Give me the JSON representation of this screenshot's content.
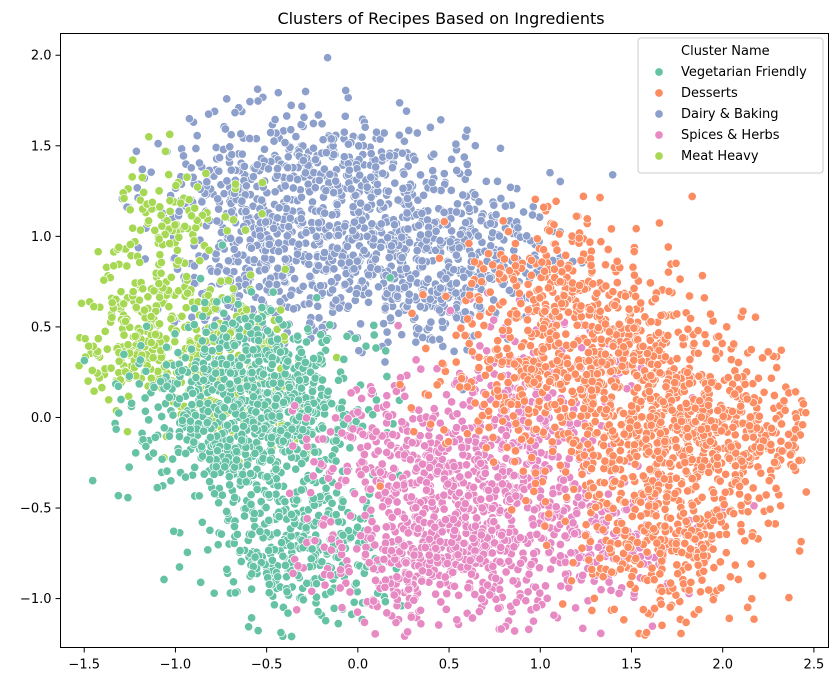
{
  "chart_data": {
    "type": "scatter",
    "title": "Clusters of Recipes Based on Ingredients",
    "xlabel": "",
    "ylabel": "",
    "xlim": [
      -1.63,
      2.58
    ],
    "ylim": [
      -1.27,
      2.12
    ],
    "xticks": [
      -1.5,
      -1.0,
      -0.5,
      0.0,
      0.5,
      1.0,
      1.5,
      2.0,
      2.5
    ],
    "xtick_labels": [
      "−1.5",
      "−1.0",
      "−0.5",
      "0.0",
      "0.5",
      "1.0",
      "1.5",
      "2.0",
      "2.5"
    ],
    "yticks": [
      -1.0,
      -0.5,
      0.0,
      0.5,
      1.0,
      1.5,
      2.0
    ],
    "ytick_labels": [
      "−1.0",
      "−0.5",
      "0.0",
      "0.5",
      "1.0",
      "1.5",
      "2.0"
    ],
    "grid": false,
    "legend_placement": "top-right",
    "legend_title": "Cluster Name",
    "marker_edge_color": "#ffffff",
    "series": [
      {
        "name": "Vegetarian Friendly",
        "color": "#66c2a5",
        "centers": [
          [
            -0.58,
            -0.12
          ],
          [
            -0.42,
            -0.55
          ],
          [
            -0.86,
            0.05
          ],
          [
            -0.28,
            -0.78
          ],
          [
            -0.3,
            0.08
          ],
          [
            -0.65,
            0.32
          ]
        ],
        "spread": [
          0.23,
          0.2
        ],
        "count": 1200,
        "seed": 11
      },
      {
        "name": "Desserts",
        "color": "#fc8d62",
        "centers": [
          [
            1.38,
            0.42
          ],
          [
            1.62,
            0.08
          ],
          [
            1.12,
            0.72
          ],
          [
            1.55,
            -0.42
          ],
          [
            1.85,
            -0.1
          ],
          [
            0.9,
            0.22
          ],
          [
            1.72,
            -0.75
          ],
          [
            2.15,
            -0.12
          ]
        ],
        "spread": [
          0.28,
          0.24
        ],
        "count": 1700,
        "seed": 23
      },
      {
        "name": "Dairy & Baking",
        "color": "#8da0cb",
        "centers": [
          [
            -0.38,
            1.02
          ],
          [
            0.05,
            0.82
          ],
          [
            -0.72,
            1.28
          ],
          [
            0.42,
            0.72
          ],
          [
            -0.15,
            1.42
          ],
          [
            0.28,
            1.18
          ],
          [
            0.62,
            0.95
          ],
          [
            -0.55,
            0.72
          ]
        ],
        "spread": [
          0.25,
          0.2
        ],
        "count": 1400,
        "seed": 37
      },
      {
        "name": "Spices & Herbs",
        "color": "#e78ac3",
        "centers": [
          [
            0.52,
            -0.52
          ],
          [
            0.25,
            -0.82
          ],
          [
            0.85,
            -0.28
          ],
          [
            0.68,
            -0.82
          ],
          [
            0.25,
            -0.18
          ],
          [
            1.02,
            0.18
          ],
          [
            1.32,
            -0.68
          ]
        ],
        "spread": [
          0.25,
          0.2
        ],
        "count": 1400,
        "seed": 53
      },
      {
        "name": "Meat Heavy",
        "color": "#a6d854",
        "centers": [
          [
            -1.08,
            0.45
          ],
          [
            -1.22,
            0.78
          ],
          [
            -0.88,
            0.22
          ],
          [
            -1.28,
            0.35
          ],
          [
            -0.68,
            0.48
          ],
          [
            -0.98,
            1.12
          ],
          [
            -0.58,
            0.05
          ]
        ],
        "spread": [
          0.16,
          0.17
        ],
        "count": 560,
        "seed": 71
      }
    ]
  }
}
